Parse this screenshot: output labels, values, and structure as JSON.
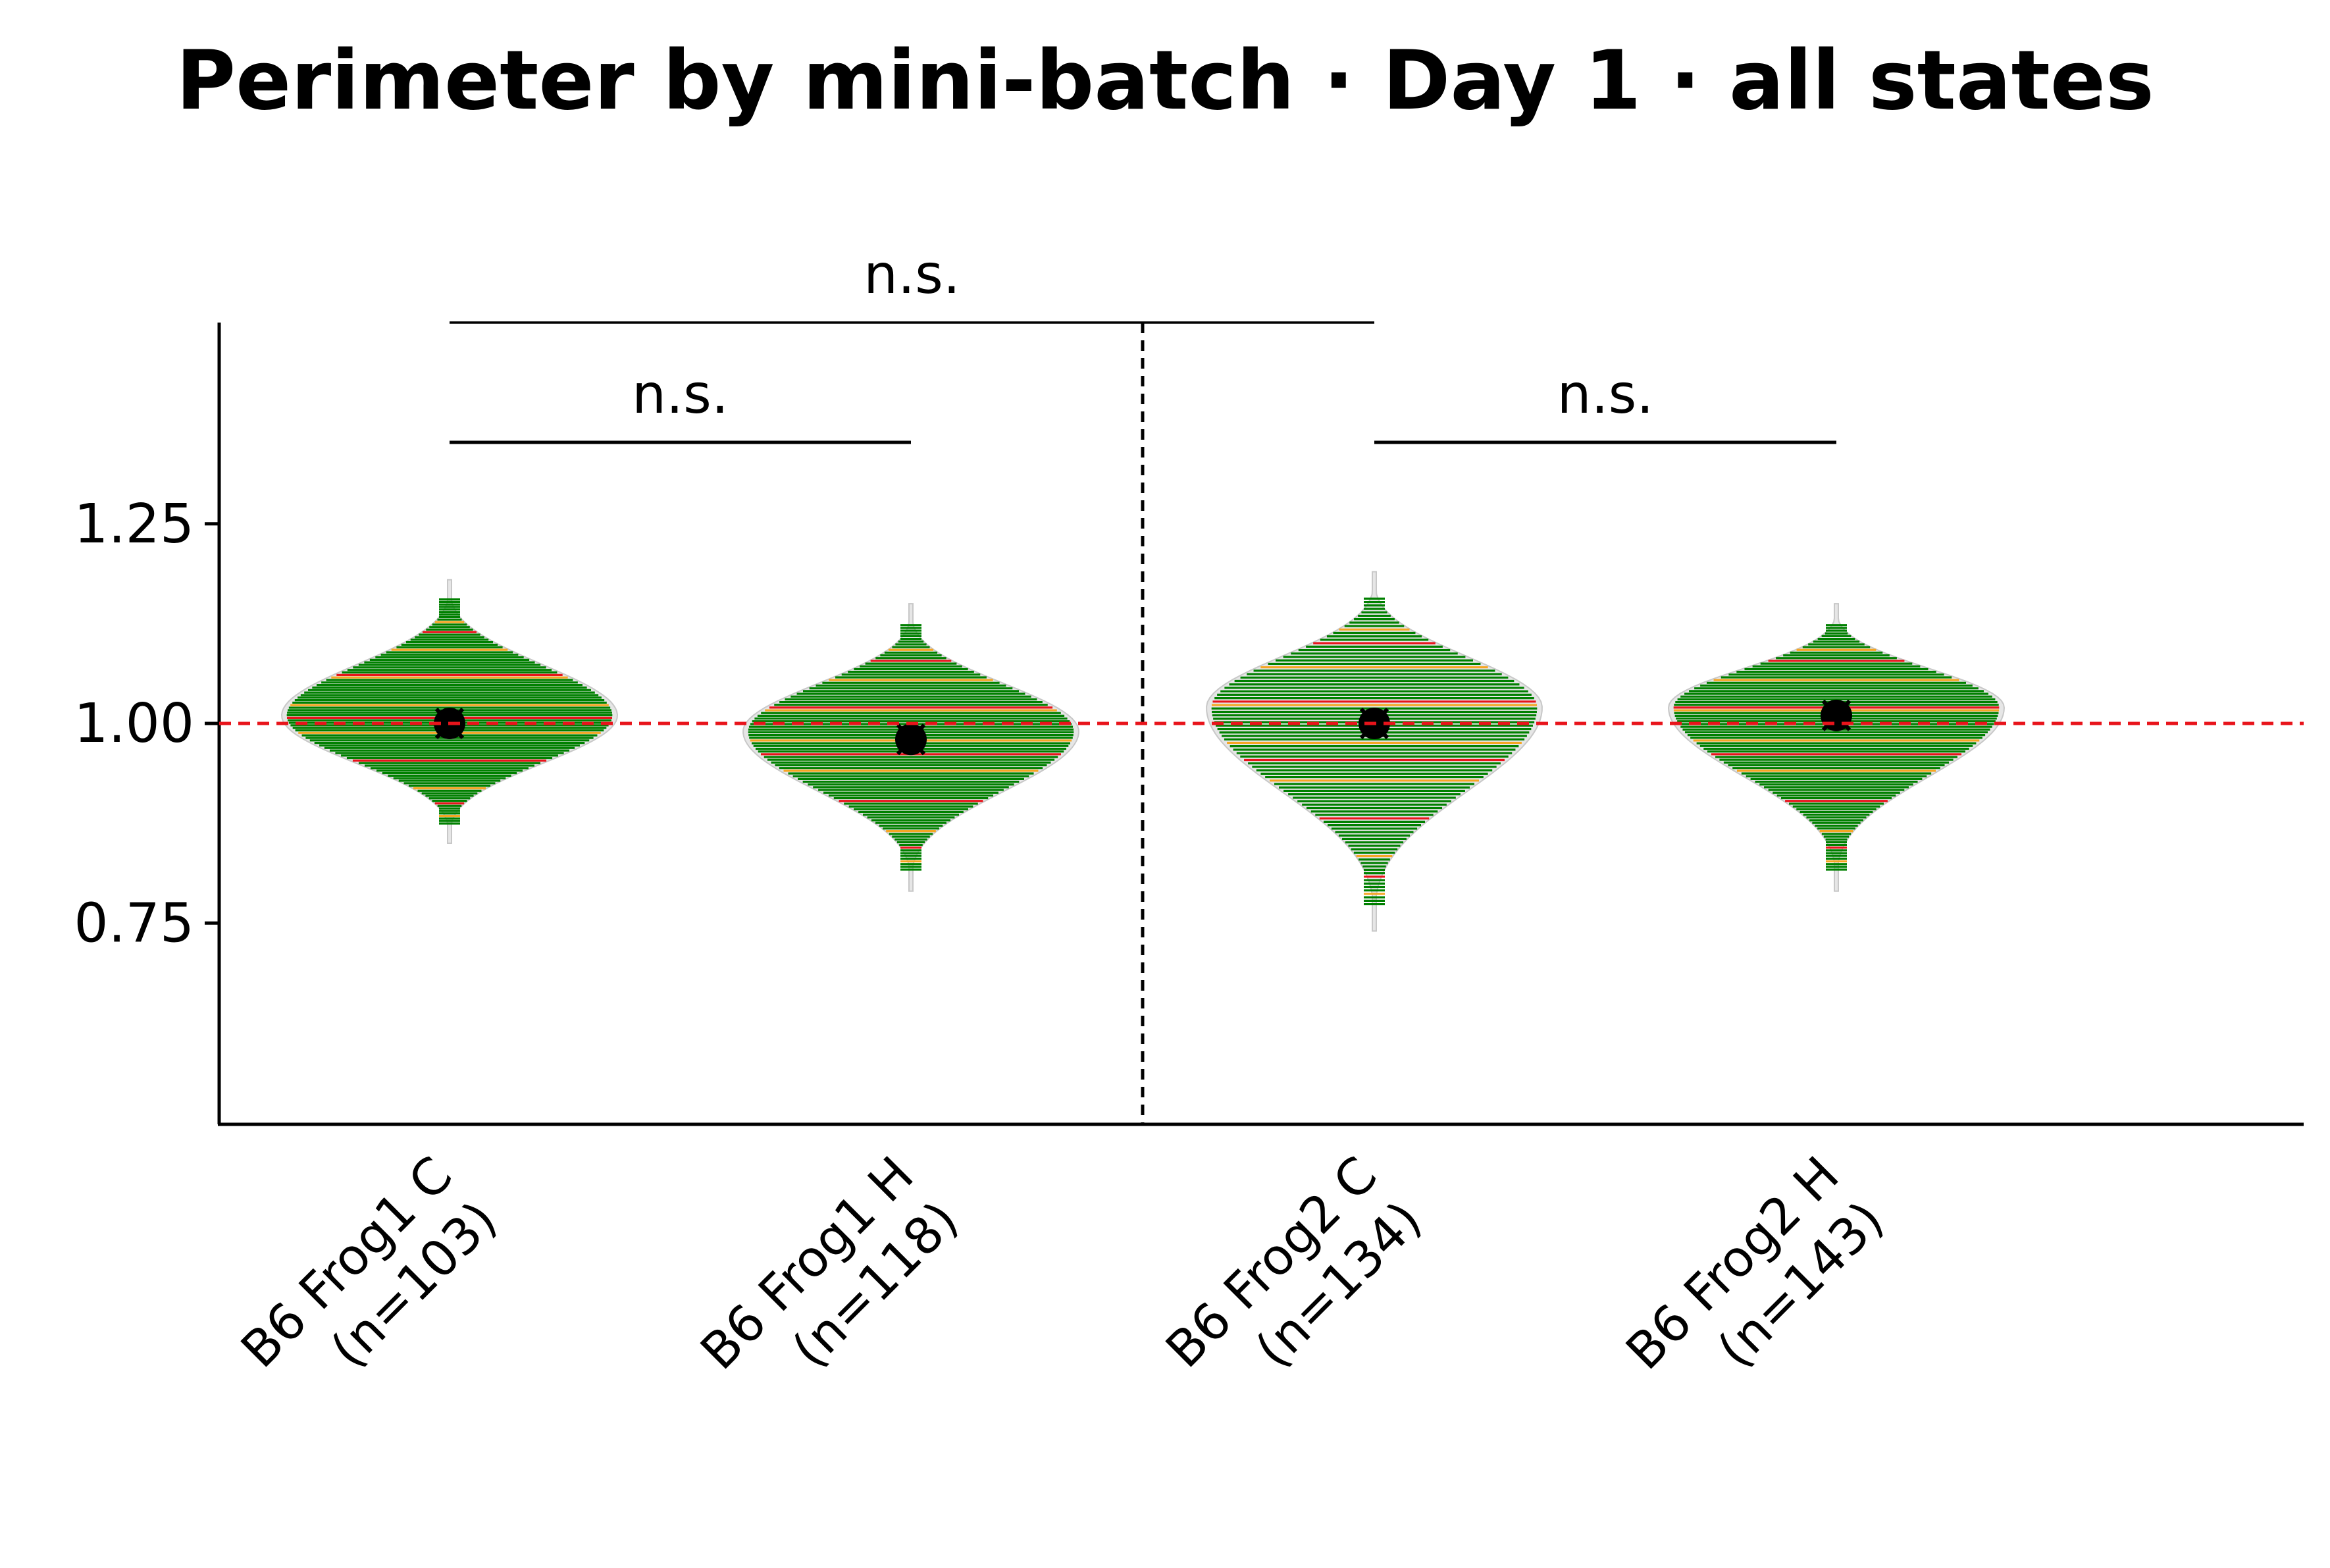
{
  "chart_data": {
    "type": "violin",
    "title": "Perimeter by mini-batch · Day 1 · all states",
    "xlabel": "",
    "ylabel": "",
    "ylim": [
      0.5,
      1.5
    ],
    "yticks": [
      0.75,
      1.0,
      1.25
    ],
    "ytick_labels": [
      "0.75",
      "1.00",
      "1.25"
    ],
    "reference_line": 1.0,
    "reference_line_color": "#e8141b",
    "group_divider_after_index": 1,
    "categories": [
      {
        "name": "B6 Frog1 C",
        "n_label": "(n=103)"
      },
      {
        "name": "B6 Frog1 H",
        "n_label": "(n=118)"
      },
      {
        "name": "B6 Frog2 C",
        "n_label": "(n=134)"
      },
      {
        "name": "B6 Frog2 H",
        "n_label": "(n=143)"
      }
    ],
    "series": [
      {
        "category": "B6 Frog1 C",
        "mean": 1.0,
        "median": 1.0,
        "min": 0.85,
        "max": 1.18,
        "mode": 1.01
      },
      {
        "category": "B6 Frog1 H",
        "mean": 0.98,
        "median": 0.98,
        "min": 0.79,
        "max": 1.15,
        "mode": 0.99
      },
      {
        "category": "B6 Frog2 C",
        "mean": 1.0,
        "median": 1.0,
        "min": 0.74,
        "max": 1.19,
        "mode": 1.02
      },
      {
        "category": "B6 Frog2 H",
        "mean": 1.01,
        "median": 1.01,
        "min": 0.79,
        "max": 1.15,
        "mode": 1.02
      }
    ],
    "comparisons": [
      {
        "from": 0,
        "to": 1,
        "label": "n.s."
      },
      {
        "from": 2,
        "to": 3,
        "label": "n.s."
      },
      {
        "from": 0,
        "to": 2,
        "label": "n.s."
      }
    ],
    "colors": {
      "fill": "#008000",
      "outline": "#e6e6e6",
      "minor_a": "#f5a623",
      "minor_b": "#e8141b",
      "marker": "#000000",
      "axis": "#000000"
    }
  }
}
